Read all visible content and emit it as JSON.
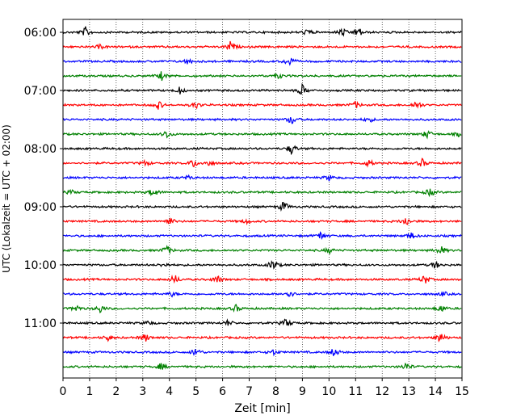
{
  "chart_data": {
    "type": "line",
    "title": "",
    "xlabel": "Zeit  [min]",
    "ylabel": "UTC (Lokalzeit = UTC + 02:00)",
    "xlim": [
      0,
      15
    ],
    "x_ticks": [
      "0",
      "1",
      "2",
      "3",
      "4",
      "5",
      "6",
      "7",
      "8",
      "9",
      "10",
      "11",
      "12",
      "13",
      "14",
      "15"
    ],
    "y_tick_labels": [
      "06:00",
      "07:00",
      "08:00",
      "09:00",
      "10:00",
      "11:00"
    ],
    "grid": "vertical-dotted",
    "trace_interval_min": 15,
    "series": [
      {
        "start": "06:00",
        "color": "#000000",
        "events": [
          [
            0.85,
            0.7
          ],
          [
            9.2,
            0.5
          ],
          [
            10.5,
            0.6
          ],
          [
            11.1,
            0.8
          ]
        ]
      },
      {
        "start": "06:15",
        "color": "#ff0000",
        "events": [
          [
            1.4,
            0.3
          ],
          [
            6.3,
            0.8
          ]
        ]
      },
      {
        "start": "06:30",
        "color": "#0000ff",
        "events": [
          [
            4.7,
            0.4
          ],
          [
            8.5,
            0.8
          ]
        ]
      },
      {
        "start": "06:45",
        "color": "#008000",
        "events": [
          [
            3.7,
            0.6
          ],
          [
            8.1,
            0.4
          ]
        ]
      },
      {
        "start": "07:00",
        "color": "#000000",
        "events": [
          [
            4.4,
            0.5
          ],
          [
            9.0,
            0.8
          ]
        ]
      },
      {
        "start": "07:15",
        "color": "#ff0000",
        "events": [
          [
            3.6,
            0.6
          ],
          [
            5.0,
            0.5
          ],
          [
            11.0,
            0.5
          ],
          [
            13.3,
            0.7
          ]
        ]
      },
      {
        "start": "07:30",
        "color": "#0000ff",
        "events": [
          [
            8.6,
            0.7
          ],
          [
            11.5,
            0.4
          ]
        ]
      },
      {
        "start": "07:45",
        "color": "#008000",
        "events": [
          [
            3.9,
            0.6
          ],
          [
            13.7,
            0.6
          ],
          [
            14.9,
            0.3
          ]
        ]
      },
      {
        "start": "08:00",
        "color": "#000000",
        "events": [
          [
            8.6,
            0.8
          ]
        ]
      },
      {
        "start": "08:15",
        "color": "#ff0000",
        "events": [
          [
            3.1,
            0.4
          ],
          [
            4.9,
            0.6
          ],
          [
            5.5,
            0.4
          ],
          [
            11.5,
            0.5
          ],
          [
            13.5,
            0.6
          ]
        ]
      },
      {
        "start": "08:30",
        "color": "#0000ff",
        "events": [
          [
            4.7,
            0.3
          ],
          [
            10.0,
            0.4
          ]
        ]
      },
      {
        "start": "08:45",
        "color": "#008000",
        "events": [
          [
            0.3,
            0.3
          ],
          [
            3.4,
            0.7
          ],
          [
            13.8,
            0.6
          ]
        ]
      },
      {
        "start": "09:00",
        "color": "#000000",
        "events": [
          [
            8.3,
            0.8
          ]
        ]
      },
      {
        "start": "09:15",
        "color": "#ff0000",
        "events": [
          [
            4.0,
            0.6
          ],
          [
            6.9,
            0.3
          ],
          [
            12.9,
            0.7
          ]
        ]
      },
      {
        "start": "09:30",
        "color": "#0000ff",
        "events": [
          [
            9.7,
            0.6
          ],
          [
            13.1,
            0.5
          ]
        ]
      },
      {
        "start": "09:45",
        "color": "#008000",
        "events": [
          [
            3.9,
            0.7
          ],
          [
            10.0,
            0.4
          ],
          [
            14.2,
            0.7
          ]
        ]
      },
      {
        "start": "10:00",
        "color": "#000000",
        "events": [
          [
            3.8,
            0.3
          ],
          [
            7.9,
            0.8
          ],
          [
            14.0,
            0.5
          ]
        ]
      },
      {
        "start": "10:15",
        "color": "#ff0000",
        "events": [
          [
            4.2,
            0.7
          ],
          [
            5.8,
            0.6
          ],
          [
            13.6,
            0.7
          ]
        ]
      },
      {
        "start": "10:30",
        "color": "#0000ff",
        "events": [
          [
            4.1,
            0.3
          ],
          [
            8.5,
            0.6
          ],
          [
            14.3,
            0.3
          ]
        ]
      },
      {
        "start": "10:45",
        "color": "#008000",
        "events": [
          [
            0.5,
            0.5
          ],
          [
            1.4,
            0.6
          ],
          [
            6.5,
            0.5
          ],
          [
            14.2,
            0.6
          ]
        ]
      },
      {
        "start": "11:00",
        "color": "#000000",
        "events": [
          [
            3.2,
            0.3
          ],
          [
            6.2,
            0.4
          ],
          [
            8.4,
            0.7
          ]
        ]
      },
      {
        "start": "11:15",
        "color": "#ff0000",
        "events": [
          [
            1.7,
            0.4
          ],
          [
            3.1,
            0.6
          ],
          [
            14.2,
            0.8
          ]
        ]
      },
      {
        "start": "11:30",
        "color": "#0000ff",
        "events": [
          [
            5.0,
            0.7
          ],
          [
            7.9,
            0.4
          ],
          [
            10.2,
            0.7
          ]
        ]
      },
      {
        "start": "11:45",
        "color": "#008000",
        "events": [
          [
            3.7,
            0.5
          ],
          [
            12.9,
            0.6
          ]
        ]
      }
    ]
  }
}
